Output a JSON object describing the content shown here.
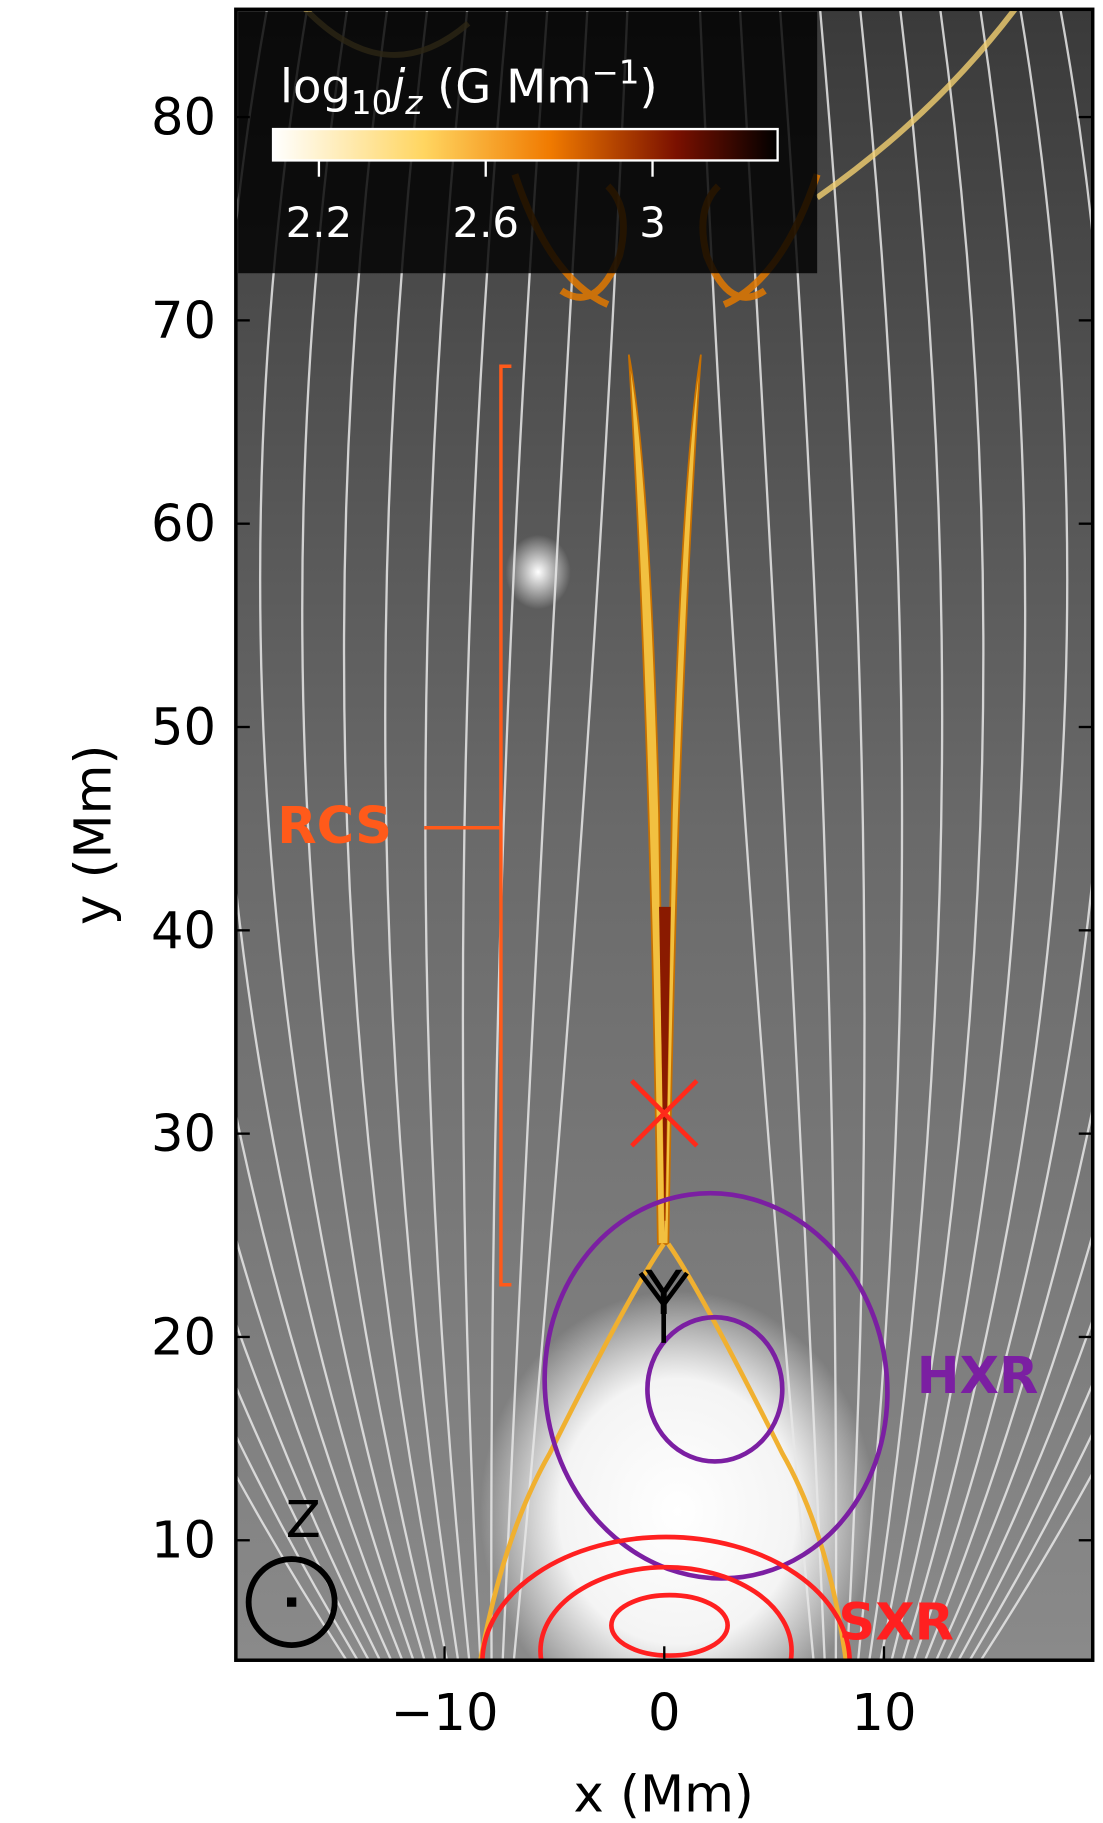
{
  "chart_data": {
    "type": "image-plot",
    "xlabel": "x (Mm)",
    "ylabel": "y (Mm)",
    "xlim": [
      -19.5,
      19.5
    ],
    "ylim": [
      4.1,
      85.3
    ],
    "xticks": [
      {
        "value": -10,
        "label": "−10"
      },
      0,
      10
    ],
    "yticks": [
      10,
      20,
      30,
      40,
      50,
      60,
      70,
      80
    ],
    "colorbar": {
      "label_parts": [
        "log",
        "10",
        "j",
        "z",
        " (G Mm",
        "−1",
        ")"
      ],
      "lim": [
        2.09,
        3.3
      ],
      "ticks": [
        2.2,
        2.6,
        3.0
      ],
      "colormap": "afmhot_r"
    },
    "markers": [
      {
        "x": 0,
        "y": 31,
        "color": "#ff2a1a"
      }
    ],
    "annotations": [
      {
        "text": "RCS",
        "color": "#ff5a1a"
      },
      {
        "text": "HXR",
        "color": "#7b1fa2"
      },
      {
        "text": "SXR",
        "color": "#ff2020"
      },
      {
        "text": "Y",
        "color": "#000000"
      },
      {
        "text": "Z",
        "color": "#000000"
      }
    ]
  }
}
